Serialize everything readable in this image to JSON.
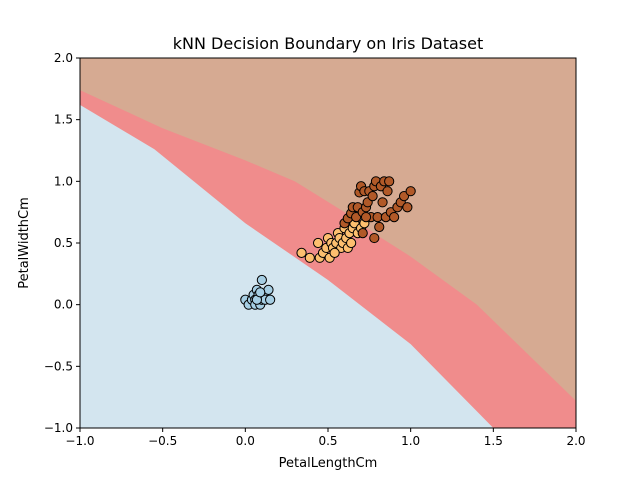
{
  "chart_data": {
    "type": "scatter",
    "title": "kNN Decision Boundary on Iris Dataset",
    "xlabel": "PetalLengthCm",
    "ylabel": "PetalWidthCm",
    "xlim": [
      -1.0,
      2.0
    ],
    "ylim": [
      -1.0,
      2.0
    ],
    "x_ticks": [
      "−1.0",
      "−0.5",
      "0.0",
      "0.5",
      "1.0",
      "1.5",
      "2.0"
    ],
    "y_ticks": [
      "−1.0",
      "−0.5",
      "0.0",
      "0.5",
      "1.0",
      "1.5",
      "2.0"
    ],
    "grid": false,
    "legend": "none",
    "regions": [
      {
        "class": 0,
        "color": "#d3e5ef",
        "boundary_upper": [
          [
            -1.0,
            1.62
          ],
          [
            -0.55,
            1.26
          ],
          [
            0.0,
            0.66
          ],
          [
            0.5,
            0.2
          ],
          [
            1.0,
            -0.32
          ],
          [
            1.5,
            -1.0
          ]
        ]
      },
      {
        "class": 1,
        "color": "#f08c8c",
        "boundary_upper": [
          [
            -1.0,
            1.74
          ],
          [
            -0.5,
            1.43
          ],
          [
            0.0,
            1.17
          ],
          [
            0.3,
            1.0
          ],
          [
            0.6,
            0.75
          ],
          [
            0.8,
            0.56
          ],
          [
            1.0,
            0.39
          ],
          [
            1.4,
            0.0
          ],
          [
            2.0,
            -0.78
          ]
        ]
      },
      {
        "class": 2,
        "color": "#d6aa92"
      }
    ],
    "series": [
      {
        "class": 0,
        "color": "#a6cee3",
        "points": [
          [
            0.0,
            0.04
          ],
          [
            0.02,
            0.0
          ],
          [
            0.04,
            0.04
          ],
          [
            0.05,
            0.08
          ],
          [
            0.06,
            0.04
          ],
          [
            0.06,
            0.0
          ],
          [
            0.07,
            0.12
          ],
          [
            0.08,
            0.04
          ],
          [
            0.08,
            0.08
          ],
          [
            0.09,
            0.0
          ],
          [
            0.1,
            0.04
          ],
          [
            0.1,
            0.2
          ],
          [
            0.11,
            0.08
          ],
          [
            0.12,
            0.04
          ],
          [
            0.14,
            0.12
          ],
          [
            0.15,
            0.04
          ],
          [
            0.07,
            0.04
          ],
          [
            0.09,
            0.1
          ]
        ]
      },
      {
        "class": 1,
        "color": "#fdbf6f",
        "points": [
          [
            0.34,
            0.42
          ],
          [
            0.39,
            0.38
          ],
          [
            0.44,
            0.5
          ],
          [
            0.45,
            0.38
          ],
          [
            0.47,
            0.42
          ],
          [
            0.49,
            0.46
          ],
          [
            0.5,
            0.54
          ],
          [
            0.51,
            0.38
          ],
          [
            0.52,
            0.5
          ],
          [
            0.53,
            0.46
          ],
          [
            0.55,
            0.5
          ],
          [
            0.56,
            0.58
          ],
          [
            0.57,
            0.54
          ],
          [
            0.58,
            0.46
          ],
          [
            0.59,
            0.5
          ],
          [
            0.6,
            0.62
          ],
          [
            0.61,
            0.54
          ],
          [
            0.62,
            0.46
          ],
          [
            0.63,
            0.58
          ],
          [
            0.64,
            0.5
          ],
          [
            0.65,
            0.62
          ],
          [
            0.66,
            0.66
          ],
          [
            0.68,
            0.58
          ],
          [
            0.7,
            0.62
          ],
          [
            0.72,
            0.66
          ],
          [
            0.54,
            0.42
          ]
        ]
      },
      {
        "class": 2,
        "color": "#b15928",
        "points": [
          [
            0.6,
            0.66
          ],
          [
            0.62,
            0.7
          ],
          [
            0.64,
            0.74
          ],
          [
            0.65,
            0.79
          ],
          [
            0.67,
            0.71
          ],
          [
            0.68,
            0.79
          ],
          [
            0.69,
            0.91
          ],
          [
            0.7,
            0.96
          ],
          [
            0.71,
            0.75
          ],
          [
            0.72,
            0.92
          ],
          [
            0.73,
            0.79
          ],
          [
            0.74,
            0.83
          ],
          [
            0.75,
            0.92
          ],
          [
            0.76,
            0.71
          ],
          [
            0.77,
            0.88
          ],
          [
            0.78,
            0.96
          ],
          [
            0.78,
            0.54
          ],
          [
            0.79,
            1.0
          ],
          [
            0.8,
            0.71
          ],
          [
            0.81,
            0.63
          ],
          [
            0.82,
            0.96
          ],
          [
            0.83,
            0.83
          ],
          [
            0.84,
            1.0
          ],
          [
            0.85,
            0.71
          ],
          [
            0.86,
            0.92
          ],
          [
            0.87,
            1.0
          ],
          [
            0.88,
            0.75
          ],
          [
            0.9,
            0.71
          ],
          [
            0.92,
            0.79
          ],
          [
            0.94,
            0.83
          ],
          [
            0.96,
            0.88
          ],
          [
            0.98,
            0.79
          ],
          [
            1.0,
            0.92
          ],
          [
            0.73,
            0.71
          ],
          [
            0.71,
            0.58
          ]
        ]
      }
    ]
  }
}
